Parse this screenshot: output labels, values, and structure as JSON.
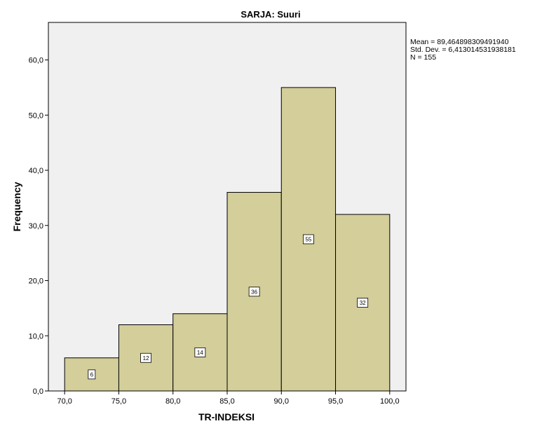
{
  "chart_data": {
    "type": "bar",
    "title": "SARJA: Suuri",
    "xlabel": "TR-INDEKSI",
    "ylabel": "Frequency",
    "bin_edges": [
      70,
      75,
      80,
      85,
      90,
      95,
      100
    ],
    "values": [
      6,
      12,
      14,
      36,
      55,
      32
    ],
    "x_ticks": [
      "70,0",
      "75,0",
      "80,0",
      "85,0",
      "90,0",
      "95,0",
      "100,0"
    ],
    "y_ticks": [
      "0,0",
      "10,0",
      "20,0",
      "30,0",
      "40,0",
      "50,0",
      "60,0"
    ],
    "xlim": [
      68.5,
      101.5
    ],
    "ylim": [
      0,
      66.8
    ],
    "grid": false,
    "bar_color": "#d3ce9a",
    "plot_background": "#f0f0f0",
    "stats": {
      "mean": "Mean = 89,464898309491940",
      "std": "Std. Dev. = 6,413014531938181",
      "n": "N = 155"
    }
  }
}
